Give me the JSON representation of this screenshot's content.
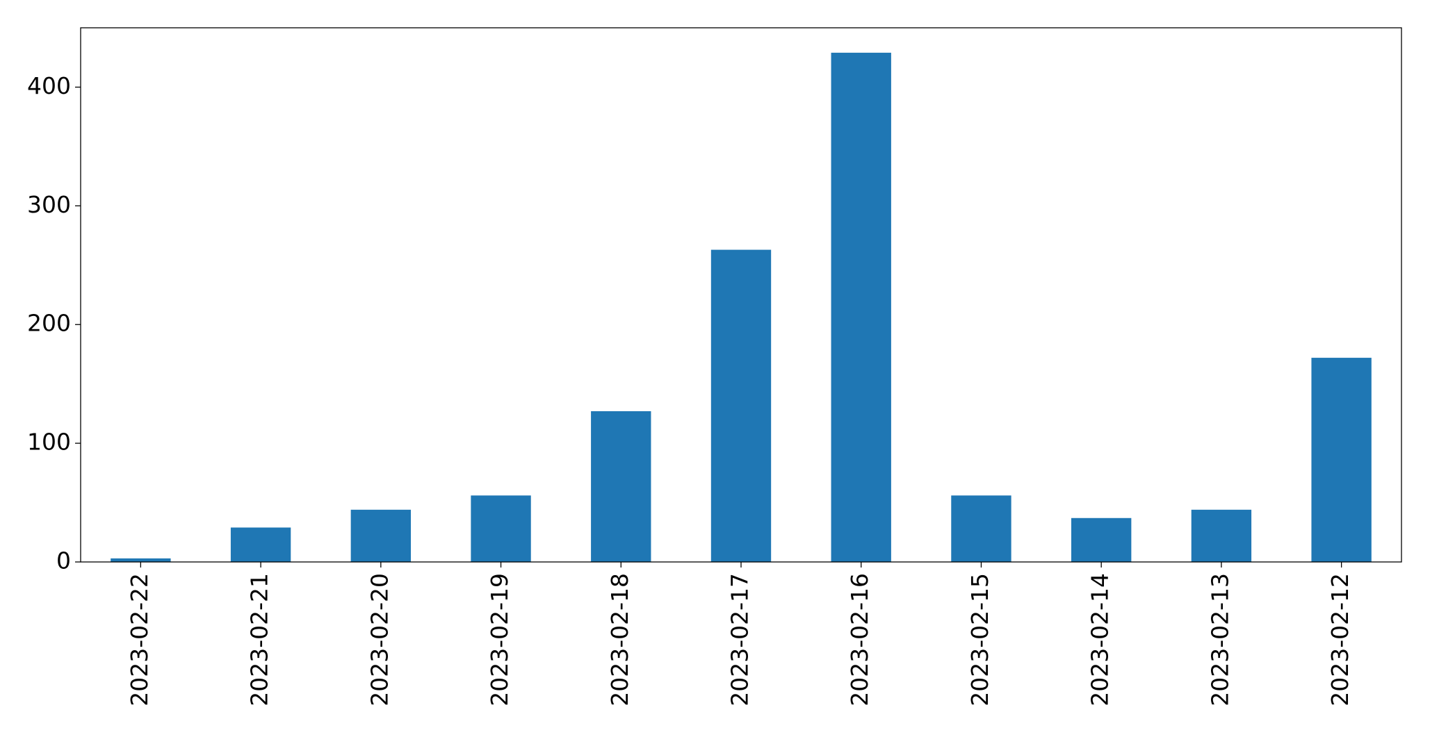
{
  "chart_data": {
    "type": "bar",
    "categories": [
      "2023-02-22",
      "2023-02-21",
      "2023-02-20",
      "2023-02-19",
      "2023-02-18",
      "2023-02-17",
      "2023-02-16",
      "2023-02-15",
      "2023-02-14",
      "2023-02-13",
      "2023-02-12"
    ],
    "values": [
      3,
      29,
      44,
      56,
      127,
      263,
      429,
      56,
      37,
      44,
      172
    ],
    "color": "#1f77b4",
    "ylim": [
      0,
      450
    ],
    "yticks": [
      0,
      100,
      200,
      300,
      400
    ],
    "grid": false
  }
}
